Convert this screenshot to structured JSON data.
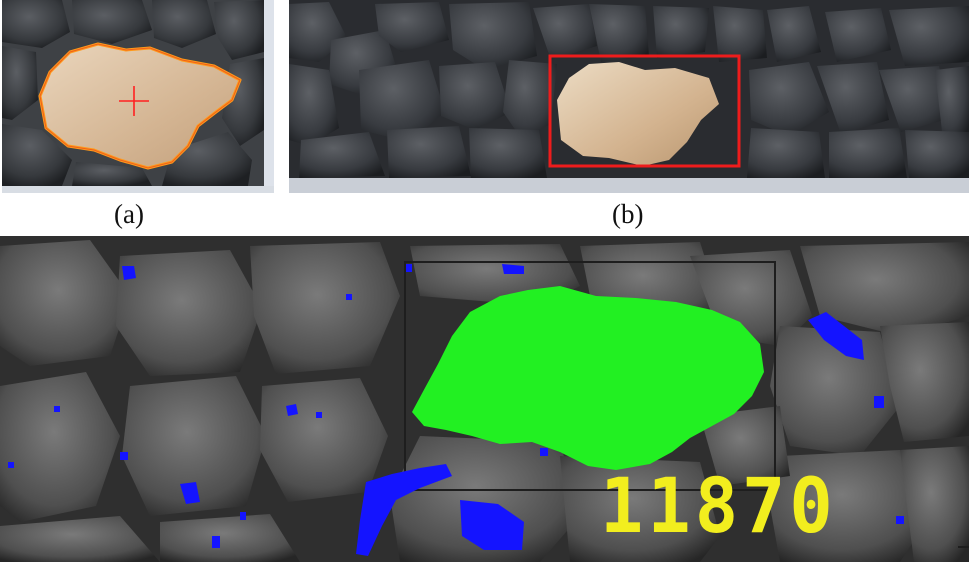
{
  "captions": {
    "a": "(a)",
    "b": "(b)"
  },
  "pixel_count": "11870",
  "colors": {
    "contour_outline": "#ff9a1a",
    "centroid_marker": "#ff2020",
    "bounding_box": "#ee1c1c",
    "segmented_region": "#22f022",
    "pixel_count_text": "#f2ee1e",
    "shadow_regions": "#1414ff"
  }
}
